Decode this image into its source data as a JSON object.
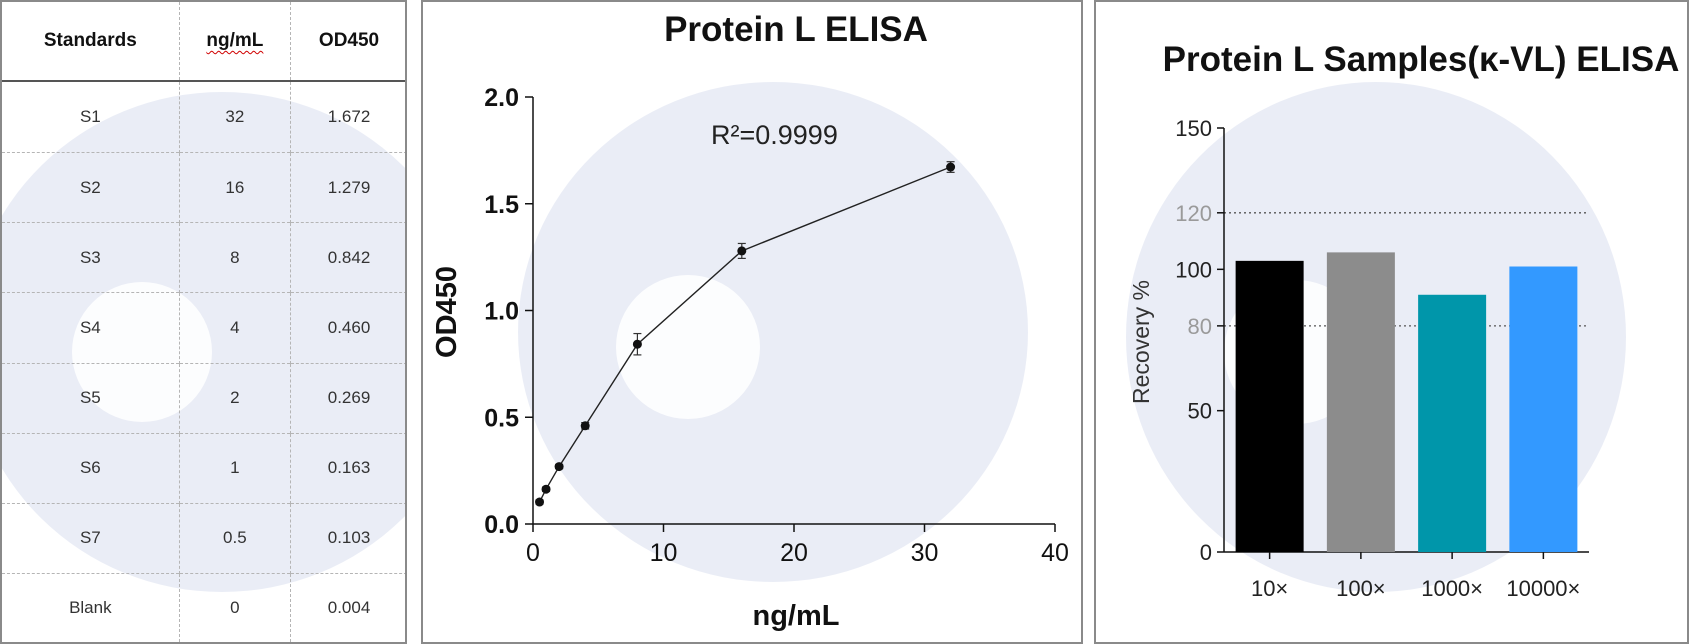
{
  "table": {
    "headers": [
      "Standards",
      "ng/mL",
      "OD450"
    ],
    "rows": [
      [
        "S1",
        "32",
        "1.672"
      ],
      [
        "S2",
        "16",
        "1.279"
      ],
      [
        "S3",
        "8",
        "0.842"
      ],
      [
        "S4",
        "4",
        "0.460"
      ],
      [
        "S5",
        "2",
        "0.269"
      ],
      [
        "S6",
        "1",
        "0.163"
      ],
      [
        "S7",
        "0.5",
        "0.103"
      ],
      [
        "Blank",
        "0",
        "0.004"
      ]
    ]
  },
  "chart_data": [
    {
      "type": "line",
      "title": "Protein L ELISA",
      "xlabel": "ng/mL",
      "ylabel": "OD450",
      "xlim": [
        0,
        40
      ],
      "ylim": [
        0,
        2.0
      ],
      "xticks": [
        "0",
        "10",
        "20",
        "30",
        "40"
      ],
      "yticks": [
        "0.0",
        "0.5",
        "1.0",
        "1.5",
        "2.0"
      ],
      "annotation": "R²=0.9999",
      "x": [
        0.5,
        1,
        2,
        4,
        8,
        16,
        32
      ],
      "y": [
        0.103,
        0.163,
        0.269,
        0.46,
        0.842,
        1.279,
        1.672
      ],
      "error": [
        0.01,
        0.01,
        0.01,
        0.015,
        0.05,
        0.035,
        0.025
      ],
      "grid": false
    },
    {
      "type": "bar",
      "title": "Protein L Samples(κ-VL) ELISA",
      "xlabel": "",
      "ylabel": "Recovery %",
      "categories": [
        "10×",
        "100×",
        "1000×",
        "10000×"
      ],
      "values": [
        103,
        106,
        91,
        101
      ],
      "colors": [
        "#000000",
        "#8c8c8c",
        "#0096aa",
        "#3399ff"
      ],
      "ylim": [
        0,
        150
      ],
      "yticks": [
        "0",
        "50",
        "80",
        "100",
        "120",
        "150"
      ],
      "reference_lines": [
        80,
        120
      ],
      "grid": false
    }
  ]
}
